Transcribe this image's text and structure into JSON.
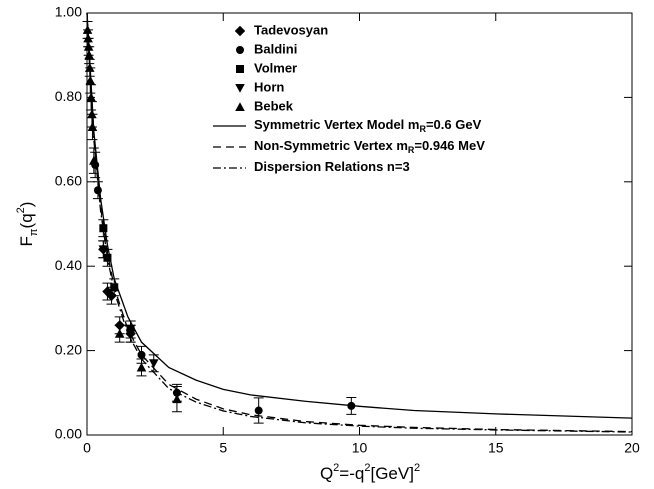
{
  "chart_data": {
    "type": "scatter",
    "xlabel": [
      "Q",
      "2",
      "=-q",
      "2",
      "[GeV]",
      "2"
    ],
    "ylabel": [
      "F",
      "π",
      "(q",
      "2",
      ")"
    ],
    "xlim": [
      0,
      20
    ],
    "ylim": [
      0,
      1
    ],
    "xticks": [
      0,
      5,
      10,
      15,
      20
    ],
    "yticks": [
      {
        "value": 0,
        "label": "0.00"
      },
      {
        "value": 0.2,
        "label": "0.20"
      },
      {
        "value": 0.4,
        "label": "0.40"
      },
      {
        "value": 0.6,
        "label": "0.60"
      },
      {
        "value": 0.8,
        "label": "0.80"
      },
      {
        "value": 1,
        "label": "1.00"
      }
    ],
    "series": [
      {
        "name": "Tadevosyan",
        "marker": "diamond",
        "color": "#000000",
        "x": [
          0.6,
          0.75,
          0.9,
          1.2,
          1.6
        ],
        "y": [
          0.44,
          0.34,
          0.33,
          0.26,
          0.24
        ],
        "err": [
          0.02,
          0.02,
          0.02,
          0.02,
          0.02
        ]
      },
      {
        "name": "Baldini",
        "marker": "circle",
        "color": "#000000",
        "x": [
          0.3,
          0.4,
          1.6,
          2.0,
          3.3,
          6.3,
          9.7
        ],
        "y": [
          0.64,
          0.58,
          0.25,
          0.19,
          0.1,
          0.058,
          0.069
        ],
        "err": [
          0.03,
          0.02,
          0.02,
          0.02,
          0.02,
          0.03,
          0.02
        ]
      },
      {
        "name": "Volmer",
        "marker": "square",
        "color": "#000000",
        "x": [
          0.6,
          0.75,
          1.0,
          1.6
        ],
        "y": [
          0.49,
          0.42,
          0.35,
          0.25
        ],
        "err": [
          0.02,
          0.02,
          0.02,
          0.02
        ]
      },
      {
        "name": "Horn",
        "marker": "down",
        "color": "#000000",
        "x": [
          0.6,
          1.6,
          2.45
        ],
        "y": [
          0.44,
          0.24,
          0.17
        ],
        "err": [
          0.02,
          0.02,
          0.02
        ]
      },
      {
        "name": "Bebek",
        "marker": "up",
        "color": "#000000",
        "x": [
          0.02,
          0.04,
          0.06,
          0.08,
          0.1,
          0.12,
          0.15,
          0.18,
          0.2,
          0.25,
          1.2,
          2.0,
          3.3
        ],
        "y": [
          0.96,
          0.94,
          0.92,
          0.9,
          0.87,
          0.84,
          0.8,
          0.76,
          0.73,
          0.65,
          0.24,
          0.16,
          0.085
        ],
        "err": [
          0.02,
          0.02,
          0.02,
          0.02,
          0.02,
          0.03,
          0.03,
          0.03,
          0.03,
          0.03,
          0.02,
          0.02,
          0.03
        ]
      }
    ],
    "curves": [
      {
        "name": [
          "Symmetric Vertex Model m",
          "R",
          "=0.6 GeV"
        ],
        "dash": "none",
        "color": "#000000",
        "x": [
          0,
          0.25,
          0.5,
          0.75,
          1,
          1.5,
          2,
          3,
          4,
          5,
          6,
          8,
          10,
          12,
          15,
          20
        ],
        "y": [
          1.0,
          0.72,
          0.56,
          0.45,
          0.37,
          0.28,
          0.22,
          0.16,
          0.13,
          0.108,
          0.095,
          0.08,
          0.068,
          0.058,
          0.05,
          0.04
        ]
      },
      {
        "name": [
          "Non-Symmetric Vertex m",
          "R",
          "=0.946 MeV"
        ],
        "dash": "8,5",
        "color": "#000000",
        "x": [
          0,
          0.25,
          0.5,
          0.75,
          1,
          1.5,
          2,
          3,
          4,
          5,
          6,
          8,
          10,
          12,
          15,
          20
        ],
        "y": [
          1.0,
          0.71,
          0.54,
          0.43,
          0.35,
          0.25,
          0.19,
          0.12,
          0.085,
          0.062,
          0.048,
          0.032,
          0.023,
          0.018,
          0.013,
          0.008
        ]
      },
      {
        "name": [
          "Dispersion Relations n=3"
        ],
        "dash": "8,3,2,3",
        "color": "#000000",
        "x": [
          0,
          0.25,
          0.5,
          0.75,
          1,
          1.5,
          2,
          3,
          4,
          5,
          6,
          8,
          10,
          12,
          15,
          20
        ],
        "y": [
          1.0,
          0.7,
          0.53,
          0.42,
          0.34,
          0.24,
          0.18,
          0.11,
          0.078,
          0.057,
          0.044,
          0.029,
          0.021,
          0.016,
          0.012,
          0.007
        ]
      }
    ]
  }
}
